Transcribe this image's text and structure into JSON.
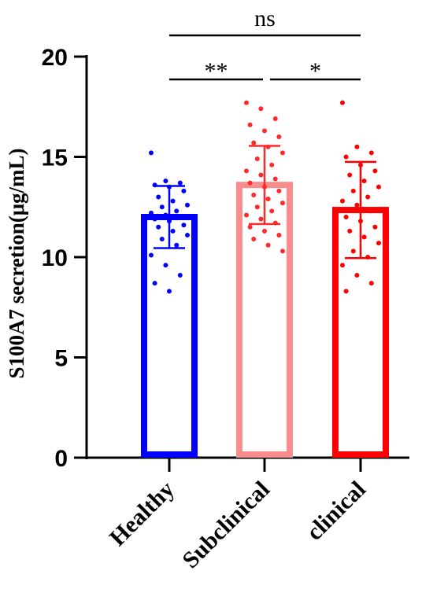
{
  "chart_data": {
    "type": "bar",
    "ylabel": "S100A7 secretion(μg/mL)",
    "xlabel": "",
    "ylim": [
      0,
      20
    ],
    "yticks": [
      0,
      5,
      10,
      15,
      20
    ],
    "ytick_labels": [
      "0",
      "5",
      "10",
      "15",
      "20"
    ],
    "categories": [
      "Healthy",
      "Subclinical",
      "clinical"
    ],
    "colors": [
      "#0000ff",
      "#f98c8c",
      "#ff0000"
    ],
    "dot_colors": [
      "#0000ff",
      "#ff2a2a",
      "#ff0000"
    ],
    "values": [
      12.0,
      13.6,
      12.35
    ],
    "sd": [
      1.55,
      1.95,
      2.4
    ],
    "points": [
      [
        15.2,
        13.8,
        13.7,
        13.6,
        13.5,
        13.3,
        13.0,
        12.8,
        12.6,
        12.5,
        12.3,
        12.2,
        12.1,
        12.0,
        11.9,
        11.8,
        11.6,
        11.5,
        11.3,
        11.1,
        10.9,
        10.6,
        10.1,
        9.6,
        9.1,
        8.7,
        8.3
      ],
      [
        17.7,
        17.4,
        16.9,
        16.6,
        16.3,
        16.0,
        15.7,
        15.5,
        15.2,
        14.9,
        14.6,
        14.3,
        14.1,
        13.9,
        13.7,
        13.5,
        13.3,
        13.1,
        12.9,
        12.7,
        12.5,
        12.3,
        12.1,
        11.9,
        11.7,
        11.5,
        11.3,
        11.1,
        10.9,
        10.6,
        10.3
      ],
      [
        17.7,
        15.5,
        15.2,
        15.0,
        14.6,
        14.3,
        14.1,
        13.8,
        13.5,
        13.3,
        13.0,
        12.8,
        12.6,
        12.3,
        12.0,
        11.8,
        11.5,
        11.3,
        11.0,
        10.7,
        10.3,
        10.0,
        9.6,
        9.1,
        8.7,
        8.3
      ]
    ],
    "significance": [
      {
        "groups": [
          0,
          1
        ],
        "label": "**"
      },
      {
        "groups": [
          1,
          2
        ],
        "label": "*"
      },
      {
        "groups": [
          0,
          2
        ],
        "label": "ns"
      }
    ]
  }
}
